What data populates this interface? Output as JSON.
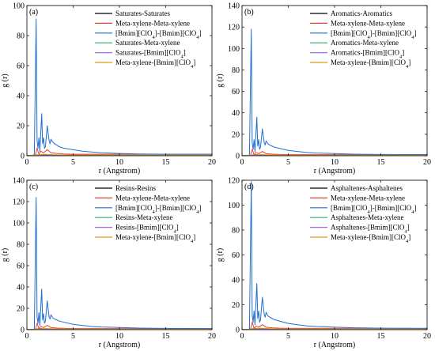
{
  "figure": {
    "colors": {
      "black": "#000000",
      "red": "#e8403a",
      "blue": "#1f6fd1",
      "green": "#28b463",
      "purple": "#a56de2",
      "orange": "#d99a1a"
    }
  },
  "chart_data": [
    {
      "type": "line",
      "panel": "(a)",
      "xlabel": "r (Angstrom)",
      "ylabel": "g (r)",
      "xlim": [
        0,
        20
      ],
      "ylim": [
        0,
        100
      ],
      "xticks": [
        "0",
        "5",
        "10",
        "15",
        "20"
      ],
      "yticks": [
        "0",
        "20",
        "40",
        "60",
        "80",
        "100"
      ],
      "legend_position": "top-right",
      "series": [
        {
          "name": "Saturates-Saturates",
          "color": "#000000",
          "x": [
            0,
            1,
            1.5,
            2,
            3,
            5,
            20
          ],
          "y": [
            0,
            0.5,
            0.6,
            0.5,
            0.3,
            0.2,
            0.2
          ]
        },
        {
          "name": "Meta-xylene-Meta-xylene",
          "color": "#e8403a",
          "x": [
            0,
            0.9,
            1.1,
            1.3,
            1.5,
            1.8,
            2.2,
            2.6,
            3.2,
            4,
            5,
            7,
            20
          ],
          "y": [
            0,
            0,
            5,
            1,
            3,
            2,
            4,
            2,
            1.5,
            1.2,
            1,
            1,
            1
          ]
        },
        {
          "name": "[Bmim][ClO4]-[Bmim][ClO4]",
          "color": "#1f6fd1",
          "x": [
            0,
            0.8,
            1.0,
            1.1,
            1.2,
            1.3,
            1.4,
            1.6,
            1.7,
            1.8,
            1.9,
            2.0,
            2.2,
            2.4,
            2.5,
            2.6,
            2.8,
            3.0,
            3.5,
            4,
            5,
            6,
            7,
            8,
            10,
            12,
            15,
            20
          ],
          "y": [
            0,
            0,
            91,
            10,
            5,
            12,
            3,
            28,
            8,
            12,
            5,
            6,
            20,
            10,
            8,
            11,
            9,
            8,
            6,
            5,
            4,
            3,
            2.5,
            2,
            1.5,
            1.2,
            1,
            1
          ]
        },
        {
          "name": "Saturates-Meta-xylene",
          "color": "#28b463",
          "x": [
            0,
            1,
            1.5,
            2,
            3,
            5,
            20
          ],
          "y": [
            0,
            0.3,
            0.5,
            0.4,
            0.4,
            0.3,
            0.3
          ]
        },
        {
          "name": "Saturates-[Bmim][ClO4]",
          "color": "#a56de2",
          "x": [
            0,
            1,
            1.5,
            2,
            3,
            5,
            20
          ],
          "y": [
            0,
            0.2,
            0.4,
            0.3,
            0.3,
            0.2,
            0.2
          ]
        },
        {
          "name": "Meta-xylene-[Bmim][ClO4]",
          "color": "#d99a1a",
          "x": [
            0,
            1.2,
            1.8,
            2.5,
            3.5,
            5,
            20
          ],
          "y": [
            0,
            0.5,
            1,
            0.8,
            0.6,
            0.5,
            0.4
          ]
        }
      ]
    },
    {
      "type": "line",
      "panel": "(b)",
      "xlabel": "r (Angstrom)",
      "ylabel": "g (r)",
      "xlim": [
        0,
        20
      ],
      "ylim": [
        0,
        140
      ],
      "xticks": [
        "0",
        "5",
        "10",
        "15",
        "20"
      ],
      "yticks": [
        "0",
        "20",
        "40",
        "60",
        "80",
        "100",
        "120",
        "140"
      ],
      "legend_position": "top-right",
      "series": [
        {
          "name": "Aromatics-Aromatics",
          "color": "#000000",
          "x": [
            0,
            1,
            1.5,
            2,
            3,
            5,
            20
          ],
          "y": [
            0,
            0.5,
            1,
            0.8,
            0.5,
            0.3,
            0.3
          ]
        },
        {
          "name": "Meta-xylene-Meta-xylene",
          "color": "#e8403a",
          "x": [
            0,
            0.9,
            1.1,
            1.3,
            1.5,
            1.8,
            2.2,
            2.6,
            3.2,
            4,
            5,
            7,
            20
          ],
          "y": [
            0,
            0,
            6,
            1,
            3,
            2,
            4,
            2,
            1.5,
            1.2,
            1,
            1,
            1
          ]
        },
        {
          "name": "[Bmim][ClO4]-[Bmim][ClO4]",
          "color": "#1f6fd1",
          "x": [
            0,
            0.8,
            1.0,
            1.1,
            1.2,
            1.3,
            1.4,
            1.6,
            1.7,
            1.8,
            1.9,
            2.0,
            2.2,
            2.4,
            2.5,
            2.6,
            2.8,
            3.0,
            3.5,
            4,
            5,
            6,
            7,
            8,
            10,
            12,
            15,
            20
          ],
          "y": [
            0,
            0,
            118,
            12,
            6,
            15,
            4,
            36,
            9,
            15,
            6,
            8,
            25,
            12,
            10,
            14,
            11,
            10,
            8,
            7,
            5,
            4,
            3,
            2.5,
            2,
            1.5,
            1.2,
            1
          ]
        },
        {
          "name": "Aromatics-Meta-xylene",
          "color": "#28b463",
          "x": [
            0,
            1,
            1.5,
            2,
            3,
            5,
            20
          ],
          "y": [
            0,
            0.3,
            0.6,
            0.5,
            0.4,
            0.3,
            0.3
          ]
        },
        {
          "name": "Aromatics-[Bmim][ClO4]",
          "color": "#a56de2",
          "x": [
            0,
            1,
            1.5,
            2,
            3,
            5,
            20
          ],
          "y": [
            0,
            0.2,
            0.5,
            0.4,
            0.3,
            0.2,
            0.2
          ]
        },
        {
          "name": "Meta-xylene-[Bmim][ClO4]",
          "color": "#d99a1a",
          "x": [
            0,
            1.2,
            1.8,
            2.5,
            3.5,
            5,
            20
          ],
          "y": [
            0,
            0.5,
            1.2,
            1,
            0.7,
            0.5,
            0.4
          ]
        }
      ]
    },
    {
      "type": "line",
      "panel": "(c)",
      "xlabel": "r (Angstrom)",
      "ylabel": "g (r)",
      "xlim": [
        0,
        20
      ],
      "ylim": [
        0,
        140
      ],
      "xticks": [
        "0",
        "5",
        "10",
        "15",
        "20"
      ],
      "yticks": [
        "0",
        "20",
        "40",
        "60",
        "80",
        "100",
        "120",
        "140"
      ],
      "legend_position": "top-right",
      "series": [
        {
          "name": "Resins-Resins",
          "color": "#000000",
          "x": [
            0,
            1,
            1.5,
            2,
            3,
            5,
            20
          ],
          "y": [
            0,
            0.5,
            1,
            0.8,
            0.5,
            0.3,
            0.3
          ]
        },
        {
          "name": "Meta-xylene-Meta-xylene",
          "color": "#e8403a",
          "x": [
            0,
            0.9,
            1.1,
            1.3,
            1.5,
            1.8,
            2.2,
            2.6,
            3.2,
            4,
            5,
            7,
            20
          ],
          "y": [
            0,
            0,
            6,
            1,
            3,
            2,
            4,
            2,
            1.5,
            1.2,
            1,
            1,
            1
          ]
        },
        {
          "name": "[Bmim][ClO4]-[Bmim][ClO4]",
          "color": "#1f6fd1",
          "x": [
            0,
            0.8,
            1.0,
            1.1,
            1.2,
            1.3,
            1.4,
            1.6,
            1.7,
            1.8,
            1.9,
            2.0,
            2.2,
            2.4,
            2.5,
            2.6,
            2.8,
            3.0,
            3.5,
            4,
            5,
            6,
            7,
            8,
            10,
            12,
            15,
            20
          ],
          "y": [
            0,
            0,
            124,
            12,
            6,
            16,
            4,
            38,
            9,
            15,
            6,
            8,
            27,
            12,
            10,
            14,
            11,
            10,
            8,
            7,
            5,
            4,
            3,
            2.5,
            2,
            1.5,
            1.2,
            1
          ]
        },
        {
          "name": "Resins-Meta-xylene",
          "color": "#28b463",
          "x": [
            0,
            1,
            1.5,
            2,
            3,
            5,
            20
          ],
          "y": [
            0,
            0.3,
            0.6,
            0.5,
            0.4,
            0.3,
            0.3
          ]
        },
        {
          "name": "Resins-[Bmim][ClO4]",
          "color": "#a56de2",
          "x": [
            0,
            1,
            1.5,
            2,
            3,
            5,
            20
          ],
          "y": [
            0,
            0.2,
            0.5,
            0.4,
            0.3,
            0.2,
            0.2
          ]
        },
        {
          "name": "Meta-xylene-[Bmim][ClO4]",
          "color": "#d99a1a",
          "x": [
            0,
            1.2,
            1.8,
            2.5,
            3.5,
            5,
            20
          ],
          "y": [
            0,
            0.5,
            1.2,
            1,
            0.7,
            0.5,
            0.4
          ]
        }
      ]
    },
    {
      "type": "line",
      "panel": "(d)",
      "xlabel": "r (Angstrom)",
      "ylabel": "g (r)",
      "xlim": [
        0,
        20
      ],
      "ylim": [
        0,
        120
      ],
      "xticks": [
        "0",
        "5",
        "10",
        "15",
        "20"
      ],
      "yticks": [
        "0",
        "20",
        "40",
        "60",
        "80",
        "100",
        "120"
      ],
      "legend_position": "top-right",
      "series": [
        {
          "name": "Asphaltenes-Asphaltenes",
          "color": "#000000",
          "x": [
            0,
            1,
            1.5,
            2,
            3,
            5,
            20
          ],
          "y": [
            0,
            0.5,
            1,
            0.8,
            0.5,
            0.3,
            0.3
          ]
        },
        {
          "name": "Meta-xylene-Meta-xylene",
          "color": "#e8403a",
          "x": [
            0,
            0.9,
            1.1,
            1.3,
            1.5,
            1.8,
            2.2,
            2.6,
            3.2,
            4,
            5,
            7,
            20
          ],
          "y": [
            0,
            0,
            6,
            1,
            3,
            2,
            4,
            2,
            1.5,
            1.2,
            1,
            1,
            1
          ]
        },
        {
          "name": "[Bmim][ClO4]-[Bmim][ClO4]",
          "color": "#1f6fd1",
          "x": [
            0,
            0.8,
            1.0,
            1.1,
            1.2,
            1.3,
            1.4,
            1.6,
            1.7,
            1.8,
            1.9,
            2.0,
            2.2,
            2.4,
            2.5,
            2.6,
            2.8,
            3.0,
            3.5,
            4,
            5,
            6,
            7,
            8,
            10,
            12,
            15,
            20
          ],
          "y": [
            0,
            0,
            119,
            12,
            6,
            15,
            4,
            37,
            9,
            15,
            6,
            8,
            26,
            12,
            10,
            14,
            11,
            10,
            8,
            7,
            5,
            4,
            3,
            2.5,
            2,
            1.5,
            1.2,
            1
          ]
        },
        {
          "name": "Asphaltenes-Meta-xylene",
          "color": "#28b463",
          "x": [
            0,
            1,
            1.5,
            2,
            3,
            5,
            20
          ],
          "y": [
            0,
            0.3,
            0.6,
            0.5,
            0.4,
            0.3,
            0.3
          ]
        },
        {
          "name": "Asphaltenes-[Bmim][ClO4]",
          "color": "#a56de2",
          "x": [
            0,
            1,
            1.5,
            2,
            3,
            5,
            20
          ],
          "y": [
            0,
            0.2,
            0.5,
            0.4,
            0.3,
            0.2,
            0.2
          ]
        },
        {
          "name": "Meta-xylene-[Bmim][ClO4]",
          "color": "#d99a1a",
          "x": [
            0,
            1.2,
            1.8,
            2.5,
            3.5,
            5,
            20
          ],
          "y": [
            0,
            0.5,
            1.2,
            1,
            0.7,
            0.5,
            0.4
          ]
        }
      ]
    }
  ]
}
